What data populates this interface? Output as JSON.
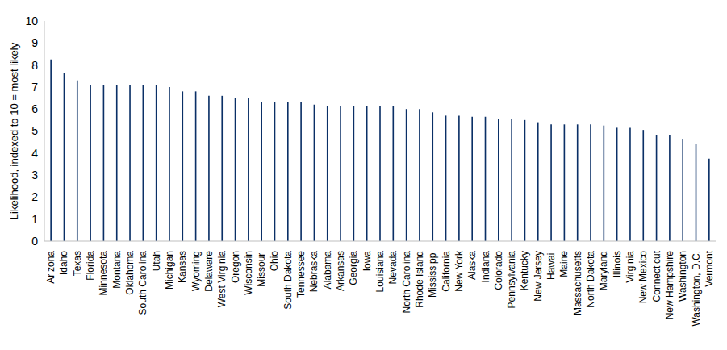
{
  "chart_data": {
    "type": "bar",
    "ylabel": "Likelihood, indexed to 10 = most likely",
    "categories": [
      "Arizona",
      "Idaho",
      "Texas",
      "Florida",
      "Minnesota",
      "Montana",
      "Oklahoma",
      "South Carolina",
      "Utah",
      "Michigan",
      "Kansas",
      "Wyoming",
      "Delaware",
      "West Virginia",
      "Oregon",
      "Wisconsin",
      "Missouri",
      "Ohio",
      "South Dakota",
      "Tennessee",
      "Nebraska",
      "Alabama",
      "Arkansas",
      "Georgia",
      "Iowa",
      "Louisiana",
      "Nevada",
      "North Carolina",
      "Rhode Island",
      "Mississippi",
      "California",
      "New York",
      "Alaska",
      "Indiana",
      "Colorado",
      "Pennsylvania",
      "Kentucky",
      "New Jersey",
      "Hawaii",
      "Maine",
      "Massachusetts",
      "North Dakota",
      "Maryland",
      "Illinois",
      "Virginia",
      "New Mexico",
      "Connecticut",
      "New Hampshire",
      "Washington",
      "Washington, D.C.",
      "Vermont"
    ],
    "values": [
      8.25,
      7.65,
      7.3,
      7.1,
      7.1,
      7.1,
      7.1,
      7.1,
      7.1,
      7.0,
      6.8,
      6.8,
      6.6,
      6.6,
      6.5,
      6.5,
      6.3,
      6.3,
      6.3,
      6.3,
      6.2,
      6.15,
      6.15,
      6.15,
      6.15,
      6.15,
      6.15,
      6.0,
      6.0,
      5.85,
      5.7,
      5.7,
      5.65,
      5.65,
      5.55,
      5.55,
      5.5,
      5.4,
      5.3,
      5.3,
      5.3,
      5.3,
      5.25,
      5.15,
      5.15,
      5.05,
      4.8,
      4.8,
      4.65,
      4.4,
      3.75
    ],
    "color": "#0a2f66",
    "ylim": [
      0,
      10
    ],
    "yticks": [
      0,
      1,
      2,
      3,
      4,
      5,
      6,
      7,
      8,
      9,
      10
    ],
    "grid": false
  }
}
